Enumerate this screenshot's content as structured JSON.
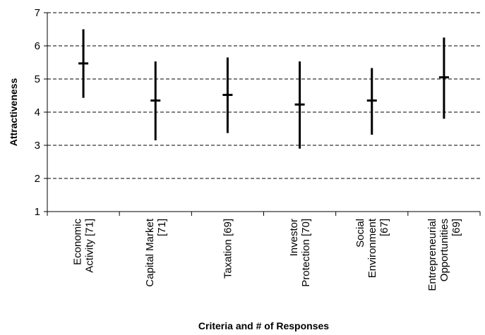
{
  "chart_data": {
    "type": "error_bar",
    "title": "",
    "xlabel": "Criteria and # of Responses",
    "ylabel": "Attractiveness",
    "ylim": [
      1,
      7
    ],
    "yticks": [
      1,
      2,
      3,
      4,
      5,
      6,
      7
    ],
    "grid": "horizontal dashed",
    "categories": [
      [
        "Economic",
        "Activity [71]"
      ],
      [
        "Capital Market",
        "[71]"
      ],
      [
        "Taxation [69]"
      ],
      [
        "Investor",
        "Protection [70]"
      ],
      [
        "Social",
        "Environment",
        "[67]"
      ],
      [
        "Entrepreneurial",
        "Opportunities",
        "[69]"
      ]
    ],
    "series": [
      {
        "mean": [
          5.47,
          4.35,
          4.52,
          4.23,
          4.35,
          5.05
        ],
        "low": [
          4.43,
          3.15,
          3.37,
          2.9,
          3.32,
          3.8
        ],
        "high": [
          6.5,
          5.53,
          5.65,
          5.53,
          5.33,
          6.25
        ]
      }
    ]
  }
}
